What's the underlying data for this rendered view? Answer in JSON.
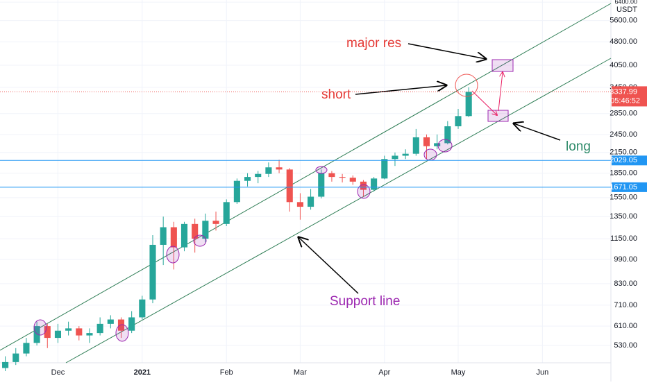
{
  "chart_data": {
    "type": "candlestick",
    "categories": [
      null,
      null,
      null,
      null,
      null,
      "Dec",
      null,
      null,
      null,
      null,
      null,
      null,
      null,
      "2021",
      null,
      null,
      null,
      null,
      null,
      null,
      null,
      "Feb",
      null,
      null,
      null,
      null,
      null,
      null,
      "Mar",
      null,
      null,
      null,
      null,
      null,
      null,
      null,
      "Apr",
      null,
      null,
      null,
      null,
      null,
      null,
      "May",
      null,
      null,
      null,
      null,
      null,
      null,
      null,
      "Jun",
      null,
      null,
      null,
      null,
      null,
      null
    ],
    "open": [
      450,
      470,
      500,
      540,
      610,
      560,
      590,
      600,
      570,
      580,
      620,
      640,
      590,
      650,
      740,
      1100,
      1250,
      1080,
      1280,
      1150,
      1310,
      1280,
      1500,
      1750,
      1800,
      1840,
      1930,
      1900,
      1500,
      1450,
      1560,
      1850,
      1800,
      1790,
      1740,
      1640,
      1780,
      2050,
      2100,
      2130,
      2400,
      2250,
      2300,
      2600,
      2800,
      null,
      null,
      null,
      null,
      null,
      null,
      null,
      null,
      null,
      null,
      null,
      null,
      null
    ],
    "high": [
      490,
      520,
      560,
      630,
      620,
      620,
      630,
      610,
      600,
      650,
      660,
      650,
      680,
      760,
      1180,
      1350,
      1300,
      1300,
      1330,
      1380,
      1400,
      1530,
      1780,
      1850,
      1880,
      2000,
      2040,
      1920,
      1600,
      1650,
      1900,
      1880,
      1840,
      1820,
      1760,
      1800,
      2100,
      2150,
      2200,
      2550,
      2450,
      2450,
      2700,
      2950,
      3450,
      null,
      null,
      null,
      null,
      null,
      null,
      null,
      null,
      null,
      null,
      null,
      null,
      null
    ],
    "low": [
      440,
      460,
      490,
      530,
      520,
      540,
      570,
      550,
      540,
      570,
      600,
      560,
      580,
      640,
      720,
      950,
      920,
      1050,
      1040,
      1120,
      1220,
      1260,
      1480,
      1680,
      1720,
      1800,
      1850,
      1400,
      1320,
      1420,
      1540,
      1740,
      1730,
      1700,
      1560,
      1620,
      1770,
      1950,
      2050,
      2100,
      2050,
      2200,
      2280,
      2550,
      2780,
      null,
      null,
      null,
      null,
      null,
      null,
      null,
      null,
      null,
      null,
      null,
      null,
      null
    ],
    "close": [
      470,
      500,
      540,
      610,
      560,
      590,
      600,
      570,
      580,
      620,
      640,
      590,
      650,
      740,
      1100,
      1250,
      1080,
      1280,
      1150,
      1310,
      1280,
      1500,
      1750,
      1800,
      1840,
      1930,
      1900,
      1500,
      1450,
      1560,
      1850,
      1800,
      1790,
      1740,
      1640,
      1780,
      2050,
      2100,
      2130,
      2400,
      2250,
      2300,
      2600,
      2800,
      3338,
      null,
      null,
      null,
      null,
      null,
      null,
      null,
      null,
      null,
      null,
      null,
      null,
      null
    ],
    "up_color": "#26a69a",
    "down_color": "#ef5350",
    "log_scale": true,
    "ylim": [
      408,
      6500
    ],
    "yticks": [
      {
        "value": 530,
        "label": "530.00"
      },
      {
        "value": 610,
        "label": "610.00"
      },
      {
        "value": 710,
        "label": "710.00"
      },
      {
        "value": 830,
        "label": "830.00"
      },
      {
        "value": 990,
        "label": "990.00"
      },
      {
        "value": 1150,
        "label": "1150.00"
      },
      {
        "value": 1350,
        "label": "1350.00"
      },
      {
        "value": 1550,
        "label": "1550.00"
      },
      {
        "value": 1850,
        "label": "1850.00"
      },
      {
        "value": 2150,
        "label": "2150.00"
      },
      {
        "value": 2450,
        "label": "2450.00"
      },
      {
        "value": 2850,
        "label": "2850.00"
      },
      {
        "value": 3450,
        "label": "3450.00"
      },
      {
        "value": 4050,
        "label": "4050.00"
      },
      {
        "value": 4800,
        "label": "4800.00"
      },
      {
        "value": 5600,
        "label": "5600.00"
      },
      {
        "value": 6400,
        "label": "6400.00"
      }
    ],
    "currency": "USDT",
    "price_lines": [
      {
        "value": 2029.05,
        "color": "#2196f3"
      },
      {
        "value": 1671.05,
        "color": "#2196f3"
      }
    ],
    "last_price": 3337.99,
    "countdown": "05:46:52",
    "annotations": {
      "major_res": "major res",
      "short": "short",
      "long": "long",
      "support": "Support line"
    }
  }
}
